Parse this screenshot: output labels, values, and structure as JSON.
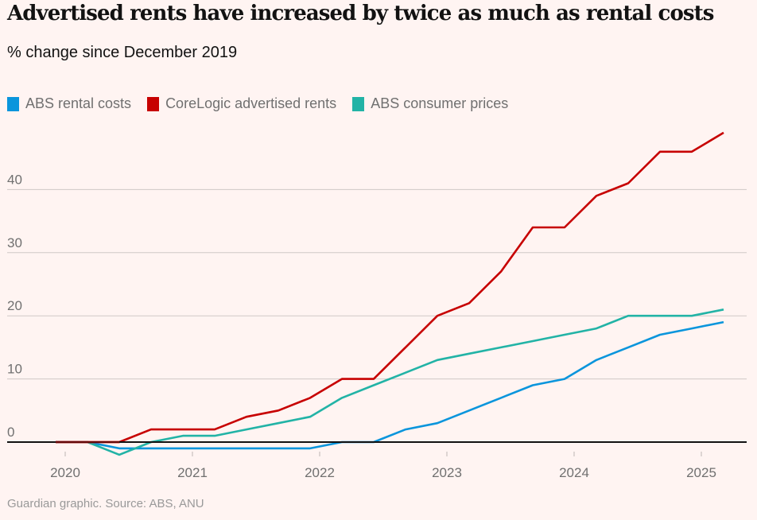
{
  "header": {
    "title": "Advertised rents have increased by twice as much as rental costs",
    "subtitle": "% change since December 2019"
  },
  "legend": [
    {
      "label": "ABS rental costs",
      "color": "#0a95dc"
    },
    {
      "label": "CoreLogic advertised rents",
      "color": "#c70000"
    },
    {
      "label": "ABS consumer prices",
      "color": "#22b3a6"
    }
  ],
  "footer": {
    "source": "Guardian graphic. Source: ABS, ANU"
  },
  "chart_data": {
    "type": "line",
    "title": "Advertised rents have increased by twice as much as rental costs",
    "subtitle": "% change since December 2019",
    "xlabel": "",
    "ylabel": "% change since December 2019",
    "x": [
      "Dec 2019",
      "Mar 2020",
      "Jun 2020",
      "Sep 2020",
      "Dec 2020",
      "Mar 2021",
      "Jun 2021",
      "Sep 2021",
      "Dec 2021",
      "Mar 2022",
      "Jun 2022",
      "Sep 2022",
      "Dec 2022",
      "Mar 2023",
      "Jun 2023",
      "Sep 2023",
      "Dec 2023",
      "Mar 2024",
      "Jun 2024",
      "Sep 2024",
      "Dec 2024",
      "Mar 2025"
    ],
    "x_decimal": [
      2019.925,
      2020.175,
      2020.425,
      2020.675,
      2020.925,
      2021.175,
      2021.425,
      2021.675,
      2021.925,
      2022.175,
      2022.425,
      2022.675,
      2022.925,
      2023.175,
      2023.425,
      2023.675,
      2023.925,
      2024.175,
      2024.425,
      2024.675,
      2024.925,
      2025.175
    ],
    "series": [
      {
        "name": "ABS rental costs",
        "color": "#0a95dc",
        "values": [
          0,
          0,
          -1,
          -1,
          -1,
          -1,
          -1,
          -1,
          -1,
          0,
          0,
          2,
          3,
          5,
          7,
          9,
          10,
          13,
          15,
          17,
          18,
          19
        ]
      },
      {
        "name": "CoreLogic advertised rents",
        "color": "#c70000",
        "values": [
          0,
          0,
          0,
          2,
          2,
          2,
          4,
          5,
          7,
          10,
          10,
          15,
          20,
          22,
          27,
          34,
          34,
          39,
          41,
          46,
          46,
          49
        ]
      },
      {
        "name": "ABS consumer prices",
        "color": "#22b3a6",
        "values": [
          0,
          0,
          -2,
          0,
          1,
          1,
          2,
          3,
          4,
          7,
          9,
          11,
          13,
          14,
          15,
          16,
          17,
          18,
          20,
          20,
          20,
          21
        ]
      }
    ],
    "x_ticks": [
      {
        "value": 2020,
        "label": "2020"
      },
      {
        "value": 2021,
        "label": "2021"
      },
      {
        "value": 2022,
        "label": "2022"
      },
      {
        "value": 2023,
        "label": "2023"
      },
      {
        "value": 2024,
        "label": "2024"
      },
      {
        "value": 2025,
        "label": "2025"
      }
    ],
    "y_ticks": [
      {
        "value": 0,
        "label": "0"
      },
      {
        "value": 10,
        "label": "10"
      },
      {
        "value": 20,
        "label": "20"
      },
      {
        "value": 30,
        "label": "30"
      },
      {
        "value": 40,
        "label": "40"
      }
    ],
    "xlim": [
      2019.7,
      2025.4
    ],
    "ylim": [
      -3,
      50
    ],
    "grid": true,
    "legend_position": "top-left"
  }
}
